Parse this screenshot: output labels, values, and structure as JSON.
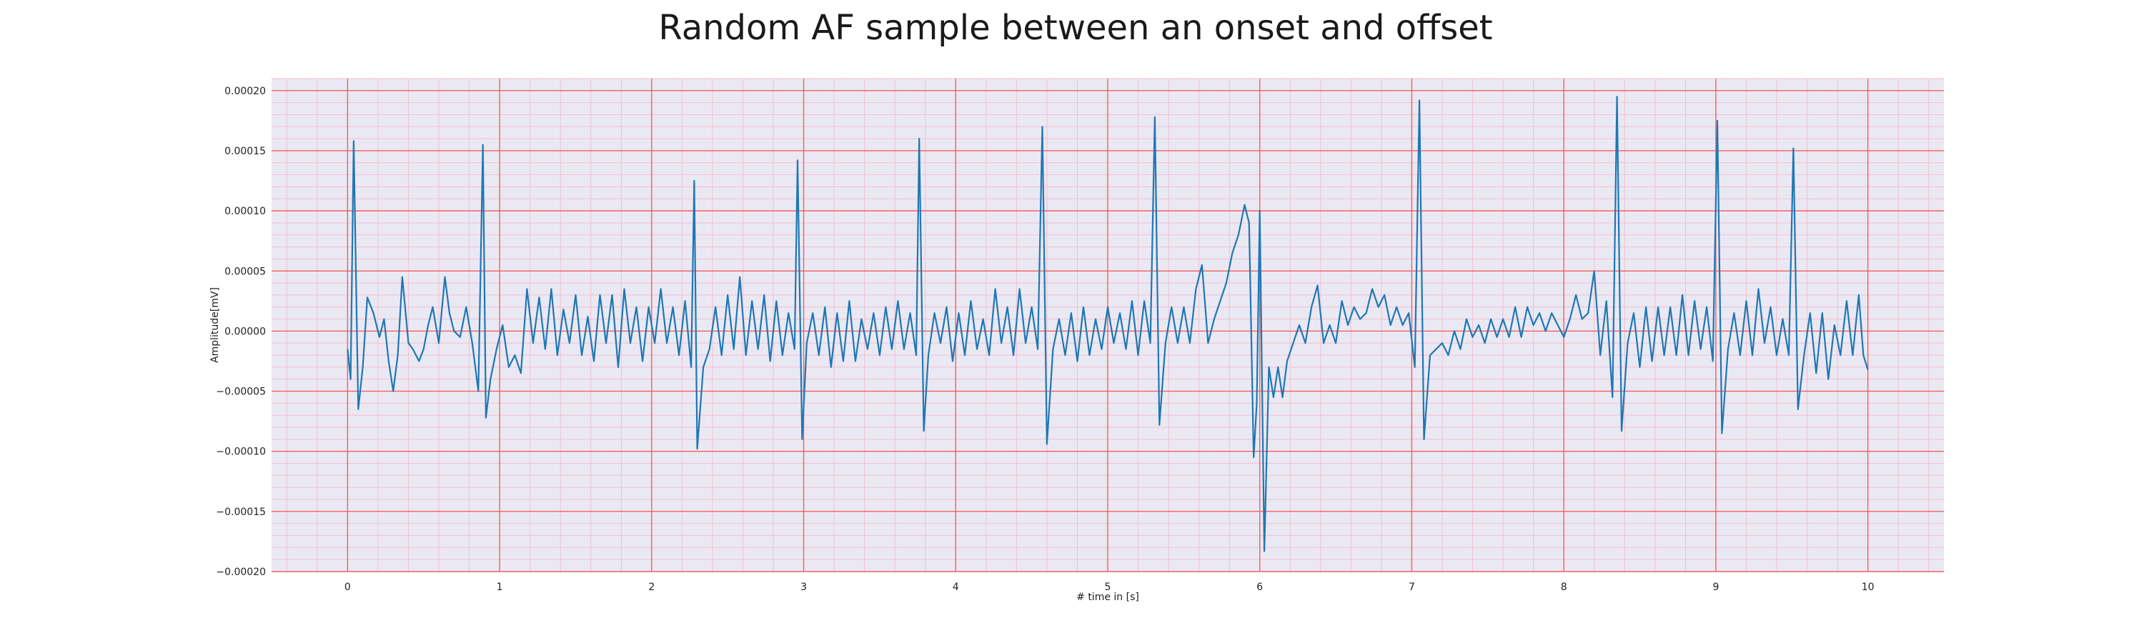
{
  "chart_data": {
    "type": "line",
    "title": "Random AF sample between an onset and offset",
    "xlabel": "# time in [s]",
    "ylabel": "Amplitude[mV]",
    "xlim": [
      -0.5,
      10.5
    ],
    "ylim": [
      -0.0002,
      0.00021
    ],
    "x_ticks": [
      0,
      1,
      2,
      3,
      4,
      5,
      6,
      7,
      8,
      9,
      10
    ],
    "x_tick_labels": [
      "0",
      "1",
      "2",
      "3",
      "4",
      "5",
      "6",
      "7",
      "8",
      "9",
      "10"
    ],
    "y_ticks": [
      -0.0002,
      -0.00015,
      -0.0001,
      -5e-05,
      0.0,
      5e-05,
      0.0001,
      0.00015,
      0.0002
    ],
    "y_tick_labels": [
      "−0.00020",
      "−0.00015",
      "−0.00010",
      "−0.00005",
      "0.00000",
      "0.00005",
      "0.00010",
      "0.00015",
      "0.00020"
    ],
    "grid": "major and minor (ECG paper)",
    "colors": {
      "line": "#1f77b4",
      "background": "#eae9f3",
      "major_grid": "#f06060",
      "minor_grid": "#f2bfd0"
    },
    "series": [
      {
        "values": [
          [
            0.0,
            -1.5e-05
          ],
          [
            0.02,
            -4e-05
          ],
          [
            0.04,
            0.000158
          ],
          [
            0.07,
            -6.5e-05
          ],
          [
            0.1,
            -3e-05
          ],
          [
            0.13,
            2.8e-05
          ],
          [
            0.17,
            1.5e-05
          ],
          [
            0.21,
            -5e-06
          ],
          [
            0.24,
            1e-05
          ],
          [
            0.27,
            -2.5e-05
          ],
          [
            0.3,
            -5e-05
          ],
          [
            0.33,
            -2e-05
          ],
          [
            0.36,
            4.5e-05
          ],
          [
            0.4,
            -1e-05
          ],
          [
            0.43,
            -1.5e-05
          ],
          [
            0.47,
            -2.5e-05
          ],
          [
            0.5,
            -1.5e-05
          ],
          [
            0.53,
            5e-06
          ],
          [
            0.56,
            2e-05
          ],
          [
            0.6,
            -1e-05
          ],
          [
            0.64,
            4.5e-05
          ],
          [
            0.67,
            1.5e-05
          ],
          [
            0.7,
            0.0
          ],
          [
            0.74,
            -5e-06
          ],
          [
            0.78,
            2e-05
          ],
          [
            0.82,
            -1e-05
          ],
          [
            0.86,
            -5e-05
          ],
          [
            0.89,
            0.000155
          ],
          [
            0.91,
            -7.2e-05
          ],
          [
            0.94,
            -4e-05
          ],
          [
            0.98,
            -1.5e-05
          ],
          [
            1.02,
            5e-06
          ],
          [
            1.06,
            -3e-05
          ],
          [
            1.1,
            -2e-05
          ],
          [
            1.14,
            -3.5e-05
          ],
          [
            1.18,
            3.5e-05
          ],
          [
            1.22,
            -1e-05
          ],
          [
            1.26,
            2.8e-05
          ],
          [
            1.3,
            -1.5e-05
          ],
          [
            1.34,
            3.5e-05
          ],
          [
            1.38,
            -2e-05
          ],
          [
            1.42,
            1.8e-05
          ],
          [
            1.46,
            -1e-05
          ],
          [
            1.5,
            3e-05
          ],
          [
            1.54,
            -2e-05
          ],
          [
            1.58,
            1.2e-05
          ],
          [
            1.62,
            -2.5e-05
          ],
          [
            1.66,
            3e-05
          ],
          [
            1.7,
            -1e-05
          ],
          [
            1.74,
            3e-05
          ],
          [
            1.78,
            -3e-05
          ],
          [
            1.82,
            3.5e-05
          ],
          [
            1.86,
            -1e-05
          ],
          [
            1.9,
            2e-05
          ],
          [
            1.94,
            -2.5e-05
          ],
          [
            1.98,
            2e-05
          ],
          [
            2.02,
            -1e-05
          ],
          [
            2.06,
            3.5e-05
          ],
          [
            2.1,
            -1e-05
          ],
          [
            2.14,
            2e-05
          ],
          [
            2.18,
            -2e-05
          ],
          [
            2.22,
            2.5e-05
          ],
          [
            2.26,
            -3e-05
          ],
          [
            2.28,
            0.000125
          ],
          [
            2.3,
            -9.8e-05
          ],
          [
            2.34,
            -3e-05
          ],
          [
            2.38,
            -1.5e-05
          ],
          [
            2.42,
            2e-05
          ],
          [
            2.46,
            -2e-05
          ],
          [
            2.5,
            3e-05
          ],
          [
            2.54,
            -1.5e-05
          ],
          [
            2.58,
            4.5e-05
          ],
          [
            2.62,
            -2e-05
          ],
          [
            2.66,
            2.5e-05
          ],
          [
            2.7,
            -1.5e-05
          ],
          [
            2.74,
            3e-05
          ],
          [
            2.78,
            -2.5e-05
          ],
          [
            2.82,
            2.5e-05
          ],
          [
            2.86,
            -2e-05
          ],
          [
            2.9,
            1.5e-05
          ],
          [
            2.94,
            -1.5e-05
          ],
          [
            2.96,
            0.000142
          ],
          [
            2.99,
            -9e-05
          ],
          [
            3.02,
            -1e-05
          ],
          [
            3.06,
            1.5e-05
          ],
          [
            3.1,
            -2e-05
          ],
          [
            3.14,
            2e-05
          ],
          [
            3.18,
            -3e-05
          ],
          [
            3.22,
            1.5e-05
          ],
          [
            3.26,
            -2.5e-05
          ],
          [
            3.3,
            2.5e-05
          ],
          [
            3.34,
            -2.5e-05
          ],
          [
            3.38,
            1e-05
          ],
          [
            3.42,
            -1.5e-05
          ],
          [
            3.46,
            1.5e-05
          ],
          [
            3.5,
            -2e-05
          ],
          [
            3.54,
            2e-05
          ],
          [
            3.58,
            -1.5e-05
          ],
          [
            3.62,
            2.5e-05
          ],
          [
            3.66,
            -1.5e-05
          ],
          [
            3.7,
            1.5e-05
          ],
          [
            3.74,
            -2e-05
          ],
          [
            3.76,
            0.00016
          ],
          [
            3.79,
            -8.3e-05
          ],
          [
            3.82,
            -2e-05
          ],
          [
            3.86,
            1.5e-05
          ],
          [
            3.9,
            -1e-05
          ],
          [
            3.94,
            2e-05
          ],
          [
            3.98,
            -2.5e-05
          ],
          [
            4.02,
            1.5e-05
          ],
          [
            4.06,
            -2e-05
          ],
          [
            4.1,
            2.5e-05
          ],
          [
            4.14,
            -1.5e-05
          ],
          [
            4.18,
            1e-05
          ],
          [
            4.22,
            -2e-05
          ],
          [
            4.26,
            3.5e-05
          ],
          [
            4.3,
            -1e-05
          ],
          [
            4.34,
            2e-05
          ],
          [
            4.38,
            -2e-05
          ],
          [
            4.42,
            3.5e-05
          ],
          [
            4.46,
            -1e-05
          ],
          [
            4.5,
            2e-05
          ],
          [
            4.54,
            -1.5e-05
          ],
          [
            4.57,
            0.00017
          ],
          [
            4.6,
            -9.4e-05
          ],
          [
            4.64,
            -1.5e-05
          ],
          [
            4.68,
            1e-05
          ],
          [
            4.72,
            -2e-05
          ],
          [
            4.76,
            1.5e-05
          ],
          [
            4.8,
            -2.5e-05
          ],
          [
            4.84,
            2e-05
          ],
          [
            4.88,
            -2e-05
          ],
          [
            4.92,
            1e-05
          ],
          [
            4.96,
            -1.5e-05
          ],
          [
            5.0,
            2e-05
          ],
          [
            5.04,
            -1e-05
          ],
          [
            5.08,
            1.5e-05
          ],
          [
            5.12,
            -1.5e-05
          ],
          [
            5.16,
            2.5e-05
          ],
          [
            5.2,
            -2e-05
          ],
          [
            5.24,
            2.5e-05
          ],
          [
            5.28,
            -1e-05
          ],
          [
            5.31,
            0.000178
          ],
          [
            5.34,
            -7.8e-05
          ],
          [
            5.38,
            -1e-05
          ],
          [
            5.42,
            2e-05
          ],
          [
            5.46,
            -1e-05
          ],
          [
            5.5,
            2e-05
          ],
          [
            5.54,
            -1e-05
          ],
          [
            5.58,
            3.5e-05
          ],
          [
            5.62,
            5.5e-05
          ],
          [
            5.66,
            -1e-05
          ],
          [
            5.7,
            1e-05
          ],
          [
            5.74,
            2.5e-05
          ],
          [
            5.78,
            4e-05
          ],
          [
            5.82,
            6.5e-05
          ],
          [
            5.86,
            8e-05
          ],
          [
            5.9,
            0.000105
          ],
          [
            5.93,
            9e-05
          ],
          [
            5.96,
            -0.000105
          ],
          [
            5.98,
            -6e-05
          ],
          [
            6.0,
            0.0001
          ],
          [
            6.03,
            -0.000183
          ],
          [
            6.06,
            -3e-05
          ],
          [
            6.09,
            -5.5e-05
          ],
          [
            6.12,
            -3e-05
          ],
          [
            6.15,
            -5.5e-05
          ],
          [
            6.18,
            -2.5e-05
          ],
          [
            6.22,
            -1e-05
          ],
          [
            6.26,
            5e-06
          ],
          [
            6.3,
            -1e-05
          ],
          [
            6.34,
            2e-05
          ],
          [
            6.38,
            3.8e-05
          ],
          [
            6.42,
            -1e-05
          ],
          [
            6.46,
            5e-06
          ],
          [
            6.5,
            -1e-05
          ],
          [
            6.54,
            2.5e-05
          ],
          [
            6.58,
            5e-06
          ],
          [
            6.62,
            2e-05
          ],
          [
            6.66,
            1e-05
          ],
          [
            6.7,
            1.5e-05
          ],
          [
            6.74,
            3.5e-05
          ],
          [
            6.78,
            2e-05
          ],
          [
            6.82,
            3e-05
          ],
          [
            6.86,
            5e-06
          ],
          [
            6.9,
            2e-05
          ],
          [
            6.94,
            5e-06
          ],
          [
            6.98,
            1.5e-05
          ],
          [
            7.02,
            -3e-05
          ],
          [
            7.05,
            0.000192
          ],
          [
            7.08,
            -9e-05
          ],
          [
            7.12,
            -2e-05
          ],
          [
            7.16,
            -1.5e-05
          ],
          [
            7.2,
            -1e-05
          ],
          [
            7.24,
            -2e-05
          ],
          [
            7.28,
            0.0
          ],
          [
            7.32,
            -1.5e-05
          ],
          [
            7.36,
            1e-05
          ],
          [
            7.4,
            -5e-06
          ],
          [
            7.44,
            5e-06
          ],
          [
            7.48,
            -1e-05
          ],
          [
            7.52,
            1e-05
          ],
          [
            7.56,
            -5e-06
          ],
          [
            7.6,
            1e-05
          ],
          [
            7.64,
            -5e-06
          ],
          [
            7.68,
            2e-05
          ],
          [
            7.72,
            -5e-06
          ],
          [
            7.76,
            2e-05
          ],
          [
            7.8,
            5e-06
          ],
          [
            7.84,
            1.5e-05
          ],
          [
            7.88,
            0.0
          ],
          [
            7.92,
            1.5e-05
          ],
          [
            7.96,
            5e-06
          ],
          [
            8.0,
            -5e-06
          ],
          [
            8.04,
            1e-05
          ],
          [
            8.08,
            3e-05
          ],
          [
            8.12,
            1e-05
          ],
          [
            8.16,
            1.5e-05
          ],
          [
            8.2,
            5e-05
          ],
          [
            8.24,
            -2e-05
          ],
          [
            8.28,
            2.5e-05
          ],
          [
            8.32,
            -5.5e-05
          ],
          [
            8.35,
            0.000195
          ],
          [
            8.38,
            -8.3e-05
          ],
          [
            8.42,
            -1e-05
          ],
          [
            8.46,
            1.5e-05
          ],
          [
            8.5,
            -3e-05
          ],
          [
            8.54,
            2e-05
          ],
          [
            8.58,
            -2.5e-05
          ],
          [
            8.62,
            2e-05
          ],
          [
            8.66,
            -2e-05
          ],
          [
            8.7,
            2e-05
          ],
          [
            8.74,
            -2e-05
          ],
          [
            8.78,
            3e-05
          ],
          [
            8.82,
            -2e-05
          ],
          [
            8.86,
            2.5e-05
          ],
          [
            8.9,
            -1.5e-05
          ],
          [
            8.94,
            2e-05
          ],
          [
            8.98,
            -2.5e-05
          ],
          [
            9.01,
            0.000175
          ],
          [
            9.04,
            -8.5e-05
          ],
          [
            9.08,
            -1.5e-05
          ],
          [
            9.12,
            1.5e-05
          ],
          [
            9.16,
            -2e-05
          ],
          [
            9.2,
            2.5e-05
          ],
          [
            9.24,
            -2e-05
          ],
          [
            9.28,
            3.5e-05
          ],
          [
            9.32,
            -1e-05
          ],
          [
            9.36,
            2e-05
          ],
          [
            9.4,
            -2e-05
          ],
          [
            9.44,
            1e-05
          ],
          [
            9.48,
            -2e-05
          ],
          [
            9.51,
            0.000152
          ],
          [
            9.54,
            -6.5e-05
          ],
          [
            9.58,
            -2e-05
          ],
          [
            9.62,
            1.5e-05
          ],
          [
            9.66,
            -3.5e-05
          ],
          [
            9.7,
            1.5e-05
          ],
          [
            9.74,
            -4e-05
          ],
          [
            9.78,
            5e-06
          ],
          [
            9.82,
            -2e-05
          ],
          [
            9.86,
            2.5e-05
          ],
          [
            9.9,
            -2e-05
          ],
          [
            9.94,
            3e-05
          ],
          [
            9.97,
            -2e-05
          ],
          [
            10.0,
            -3.2e-05
          ]
        ]
      }
    ]
  }
}
